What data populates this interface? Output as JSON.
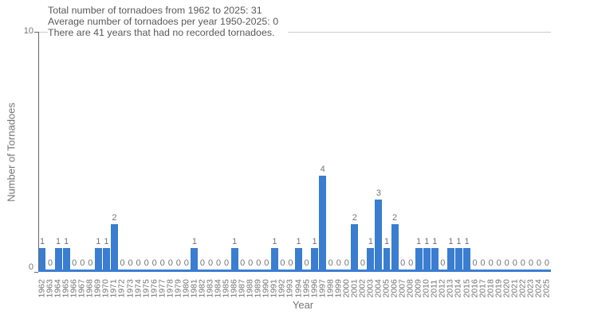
{
  "title": {
    "line1": "Total number of tornadoes from 1962 to 2025: 31",
    "line2": "Average number of tornadoes per year 1950-2025: 0",
    "line3": "There are 41 years that had no recorded tornadoes."
  },
  "chart_data": {
    "type": "bar",
    "title": "Total number of tornadoes from 1962 to 2025: 31 | Average number of tornadoes per year 1950-2025: 0 | There are 41 years that had no recorded tornadoes.",
    "xlabel": "Year",
    "ylabel": "Number of Tornadoes",
    "ylim": [
      0,
      10
    ],
    "ytick_labels": [
      "0",
      "10"
    ],
    "grid": "single light horizontal gridline at y=10",
    "legend": "none",
    "bar_color": "#3a7dd1",
    "value_labels_shown": true,
    "categories": [
      1962,
      1963,
      1964,
      1965,
      1966,
      1967,
      1968,
      1969,
      1970,
      1971,
      1972,
      1973,
      1974,
      1975,
      1976,
      1977,
      1978,
      1979,
      1980,
      1981,
      1982,
      1983,
      1984,
      1985,
      1986,
      1987,
      1988,
      1989,
      1990,
      1991,
      1992,
      1993,
      1994,
      1995,
      1996,
      1997,
      1998,
      1999,
      2000,
      2001,
      2002,
      2003,
      2004,
      2005,
      2006,
      2007,
      2008,
      2009,
      2010,
      2011,
      2012,
      2013,
      2014,
      2015,
      2016,
      2017,
      2018,
      2019,
      2020,
      2021,
      2022,
      2023,
      2024,
      2025
    ],
    "values": [
      1,
      0,
      1,
      1,
      0,
      0,
      0,
      1,
      1,
      2,
      0,
      0,
      0,
      0,
      0,
      0,
      0,
      0,
      0,
      1,
      0,
      0,
      0,
      0,
      1,
      0,
      0,
      0,
      0,
      1,
      0,
      0,
      1,
      0,
      1,
      4,
      0,
      0,
      0,
      2,
      0,
      1,
      3,
      1,
      2,
      0,
      0,
      1,
      1,
      1,
      0,
      1,
      1,
      1,
      0,
      0,
      0,
      0,
      0,
      0,
      0,
      0,
      0,
      0
    ]
  },
  "colors": {
    "bar": "#3a7dd1",
    "baseline": "#3a7dd1",
    "gridline": "#cccccc",
    "axis_line": "#666666",
    "title_text": "#595959",
    "tick_text": "#757575",
    "background": "#ffffff"
  }
}
